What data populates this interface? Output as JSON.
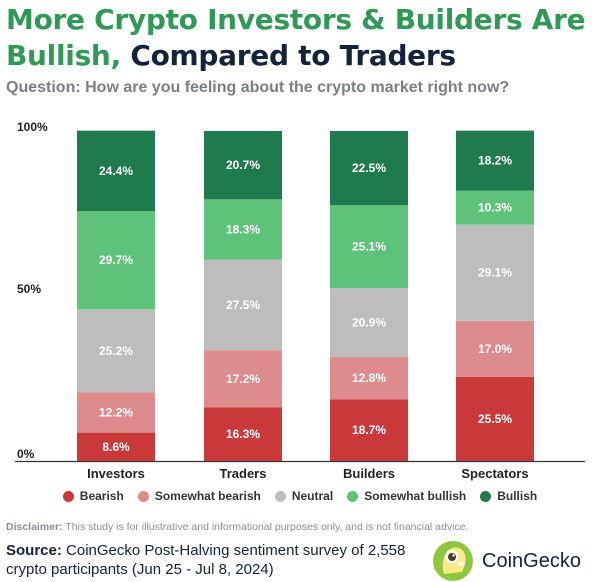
{
  "header": {
    "title_highlight": "More Crypto Investors & Builders Are Bullish,",
    "title_rest": " Compared to Traders",
    "question": "Question: How are you feeling about the crypto market right now?"
  },
  "colors": {
    "title_green": "#2f9a55",
    "title_dark": "#13233a"
  },
  "chart_data": {
    "type": "bar",
    "stacked": true,
    "categories": [
      "Investors",
      "Traders",
      "Builders",
      "Spectators"
    ],
    "y_ticks": [
      "0%",
      "50%",
      "100%"
    ],
    "ylim": [
      0,
      100
    ],
    "grid": false,
    "legend_position": "bottom",
    "series": [
      {
        "name": "Bearish",
        "color": "#c9393a",
        "values": [
          8.6,
          16.3,
          18.7,
          25.5
        ],
        "labels": [
          "8.6%",
          "16.3%",
          "18.7%",
          "25.5%"
        ]
      },
      {
        "name": "Somewhat bearish",
        "color": "#dd8b8c",
        "values": [
          12.2,
          17.2,
          12.8,
          17.0
        ],
        "labels": [
          "12.2%",
          "17.2%",
          "12.8%",
          "17.0%"
        ]
      },
      {
        "name": "Neutral",
        "color": "#bdbdbd",
        "values": [
          25.2,
          27.5,
          20.9,
          29.1
        ],
        "labels": [
          "25.2%",
          "27.5%",
          "20.9%",
          "29.1%"
        ]
      },
      {
        "name": "Somewhat bullish",
        "color": "#5fc27b",
        "values": [
          29.7,
          18.3,
          25.1,
          10.3
        ],
        "labels": [
          "29.7%",
          "18.3%",
          "25.1%",
          "10.3%"
        ]
      },
      {
        "name": "Bullish",
        "color": "#1f7a4d",
        "values": [
          24.4,
          20.7,
          22.5,
          18.2
        ],
        "labels": [
          "24.4%",
          "20.7%",
          "22.5%",
          "18.2%"
        ]
      }
    ]
  },
  "footer": {
    "disclaimer_label": "Disclaimer:",
    "disclaimer_text": " This study is for illustrative and informational purposes only, and is not financial advice.",
    "source_label": "Source:",
    "source_text": " CoinGecko Post-Halving sentiment survey of 2,558 crypto participants (Jun 25 - Jul 8, 2024)",
    "brand": "CoinGecko",
    "brand_icon": "coingecko-logo-icon"
  }
}
